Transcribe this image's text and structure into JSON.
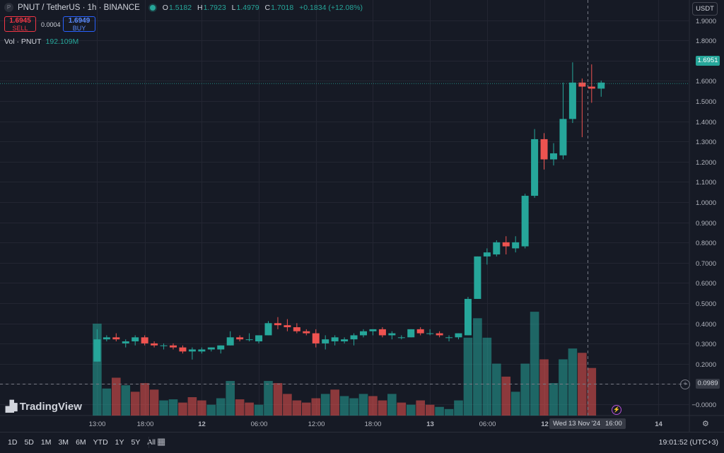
{
  "header": {
    "symbol_icon": "P",
    "symbol": "PNUT / TetherUS · 1h · BINANCE",
    "ohlc": [
      {
        "k": "O",
        "v": "1.5182"
      },
      {
        "k": "H",
        "v": "1.7923"
      },
      {
        "k": "L",
        "v": "1.4979"
      },
      {
        "k": "C",
        "v": "1.7018"
      },
      {
        "k": "",
        "v": "+0.1834 (+12.08%)"
      }
    ]
  },
  "trade": {
    "sell_price": "1.6945",
    "sell_label": "SELL",
    "spread": "0.0004",
    "buy_price": "1.6949",
    "buy_label": "BUY"
  },
  "volume": {
    "label": "Vol · PNUT",
    "value": "192.109M"
  },
  "currency": "USDT",
  "last_price": "1.6951",
  "crosshair": {
    "price": "0.0989",
    "date": "Wed 13 Nov '24",
    "time": "16:00"
  },
  "logo": "TradingView",
  "clock": "19:01:52 (UTC+3)",
  "ranges": [
    "1D",
    "5D",
    "1M",
    "3M",
    "6M",
    "YTD",
    "1Y",
    "5Y",
    "All"
  ],
  "icons": {
    "calendar": "calendar-icon",
    "settings": "gear-icon",
    "add": "plus-icon",
    "alert": "lightning-icon"
  },
  "colors": {
    "up": "#26a69a",
    "down": "#ef5350",
    "bg": "#161a25",
    "grid": "#232632"
  },
  "chart_data": {
    "type": "candlestick",
    "title": "PNUT / TetherUS · 1h · BINANCE",
    "y_ticks": [
      "1.9000",
      "1.8000",
      "1.7000",
      "1.6000",
      "1.5000",
      "1.4000",
      "1.3000",
      "1.2000",
      "1.1000",
      "1.0000",
      "0.9000",
      "0.8000",
      "0.7000",
      "0.6000",
      "0.5000",
      "0.4000",
      "0.3000",
      "0.2000",
      "0.1000",
      "−0.0000"
    ],
    "x_ticks": [
      {
        "label": "13:00",
        "x": 0
      },
      {
        "label": "18:00",
        "x": 5
      },
      {
        "label": "12",
        "x": 11
      },
      {
        "label": "06:00",
        "x": 17
      },
      {
        "label": "12:00",
        "x": 23
      },
      {
        "label": "18:00",
        "x": 29
      },
      {
        "label": "13",
        "x": 35
      },
      {
        "label": "06:00",
        "x": 41
      },
      {
        "label": "12",
        "x": 47
      },
      {
        "label": "14",
        "x": 59
      }
    ],
    "candles": [
      [
        0.32,
        0.48,
        0.32,
        0.43
      ],
      [
        0.43,
        0.45,
        0.42,
        0.44
      ],
      [
        0.44,
        0.46,
        0.42,
        0.43
      ],
      [
        0.41,
        0.43,
        0.39,
        0.42
      ],
      [
        0.42,
        0.45,
        0.4,
        0.44
      ],
      [
        0.44,
        0.45,
        0.4,
        0.41
      ],
      [
        0.41,
        0.42,
        0.39,
        0.4
      ],
      [
        0.4,
        0.41,
        0.38,
        0.4
      ],
      [
        0.4,
        0.41,
        0.38,
        0.39
      ],
      [
        0.39,
        0.4,
        0.36,
        0.37
      ],
      [
        0.37,
        0.39,
        0.33,
        0.38
      ],
      [
        0.37,
        0.39,
        0.36,
        0.38
      ],
      [
        0.38,
        0.39,
        0.37,
        0.39
      ],
      [
        0.38,
        0.4,
        0.36,
        0.4
      ],
      [
        0.4,
        0.47,
        0.4,
        0.44
      ],
      [
        0.44,
        0.45,
        0.42,
        0.43
      ],
      [
        0.43,
        0.46,
        0.42,
        0.43
      ],
      [
        0.42,
        0.45,
        0.41,
        0.45
      ],
      [
        0.45,
        0.52,
        0.45,
        0.51
      ],
      [
        0.51,
        0.54,
        0.48,
        0.5
      ],
      [
        0.5,
        0.53,
        0.47,
        0.49
      ],
      [
        0.49,
        0.51,
        0.46,
        0.47
      ],
      [
        0.47,
        0.48,
        0.45,
        0.46
      ],
      [
        0.46,
        0.48,
        0.39,
        0.41
      ],
      [
        0.41,
        0.45,
        0.38,
        0.43
      ],
      [
        0.42,
        0.45,
        0.4,
        0.44
      ],
      [
        0.42,
        0.44,
        0.41,
        0.43
      ],
      [
        0.43,
        0.46,
        0.4,
        0.45
      ],
      [
        0.45,
        0.48,
        0.44,
        0.47
      ],
      [
        0.47,
        0.48,
        0.45,
        0.48
      ],
      [
        0.48,
        0.49,
        0.44,
        0.45
      ],
      [
        0.45,
        0.47,
        0.43,
        0.46
      ],
      [
        0.44,
        0.45,
        0.43,
        0.44
      ],
      [
        0.44,
        0.48,
        0.44,
        0.48
      ],
      [
        0.48,
        0.49,
        0.45,
        0.46
      ],
      [
        0.46,
        0.48,
        0.45,
        0.46
      ],
      [
        0.46,
        0.47,
        0.44,
        0.45
      ],
      [
        0.44,
        0.45,
        0.42,
        0.44
      ],
      [
        0.44,
        0.46,
        0.43,
        0.46
      ],
      [
        0.45,
        0.64,
        0.45,
        0.63
      ],
      [
        0.63,
        0.84,
        0.63,
        0.84
      ],
      [
        0.84,
        0.88,
        0.8,
        0.86
      ],
      [
        0.85,
        0.92,
        0.84,
        0.91
      ],
      [
        0.91,
        0.94,
        0.85,
        0.89
      ],
      [
        0.88,
        0.94,
        0.86,
        0.91
      ],
      [
        0.89,
        1.15,
        0.88,
        1.14
      ],
      [
        1.14,
        1.47,
        1.13,
        1.42
      ],
      [
        1.42,
        1.45,
        1.27,
        1.32
      ],
      [
        1.32,
        1.4,
        1.29,
        1.35
      ],
      [
        1.34,
        1.7,
        1.32,
        1.52
      ],
      [
        1.52,
        1.8,
        1.5,
        1.7
      ],
      [
        1.7,
        1.72,
        1.43,
        1.68
      ],
      [
        1.68,
        1.79,
        1.6,
        1.67
      ],
      [
        1.67,
        1.71,
        1.63,
        1.7
      ]
    ],
    "volumes": [
      85,
      25,
      35,
      28,
      22,
      30,
      24,
      14,
      15,
      12,
      17,
      14,
      10,
      16,
      32,
      15,
      12,
      10,
      32,
      30,
      20,
      14,
      12,
      16,
      20,
      24,
      18,
      16,
      20,
      18,
      14,
      20,
      12,
      10,
      14,
      10,
      8,
      6,
      14,
      72,
      90,
      72,
      48,
      36,
      22,
      48,
      96,
      52,
      30,
      52,
      62,
      58,
      44,
      0
    ],
    "volume_dirs": [
      "up",
      "up",
      "down",
      "up",
      "down",
      "down",
      "down",
      "up",
      "up",
      "down",
      "down",
      "down",
      "up",
      "up",
      "up",
      "down",
      "down",
      "up",
      "up",
      "down",
      "down",
      "down",
      "down",
      "down",
      "up",
      "down",
      "up",
      "up",
      "up",
      "down",
      "down",
      "up",
      "down",
      "up",
      "down",
      "down",
      "up",
      "up",
      "up",
      "up",
      "up",
      "up",
      "up",
      "down",
      "up",
      "up",
      "up",
      "down",
      "up",
      "up",
      "up",
      "down",
      "down",
      "up"
    ]
  }
}
